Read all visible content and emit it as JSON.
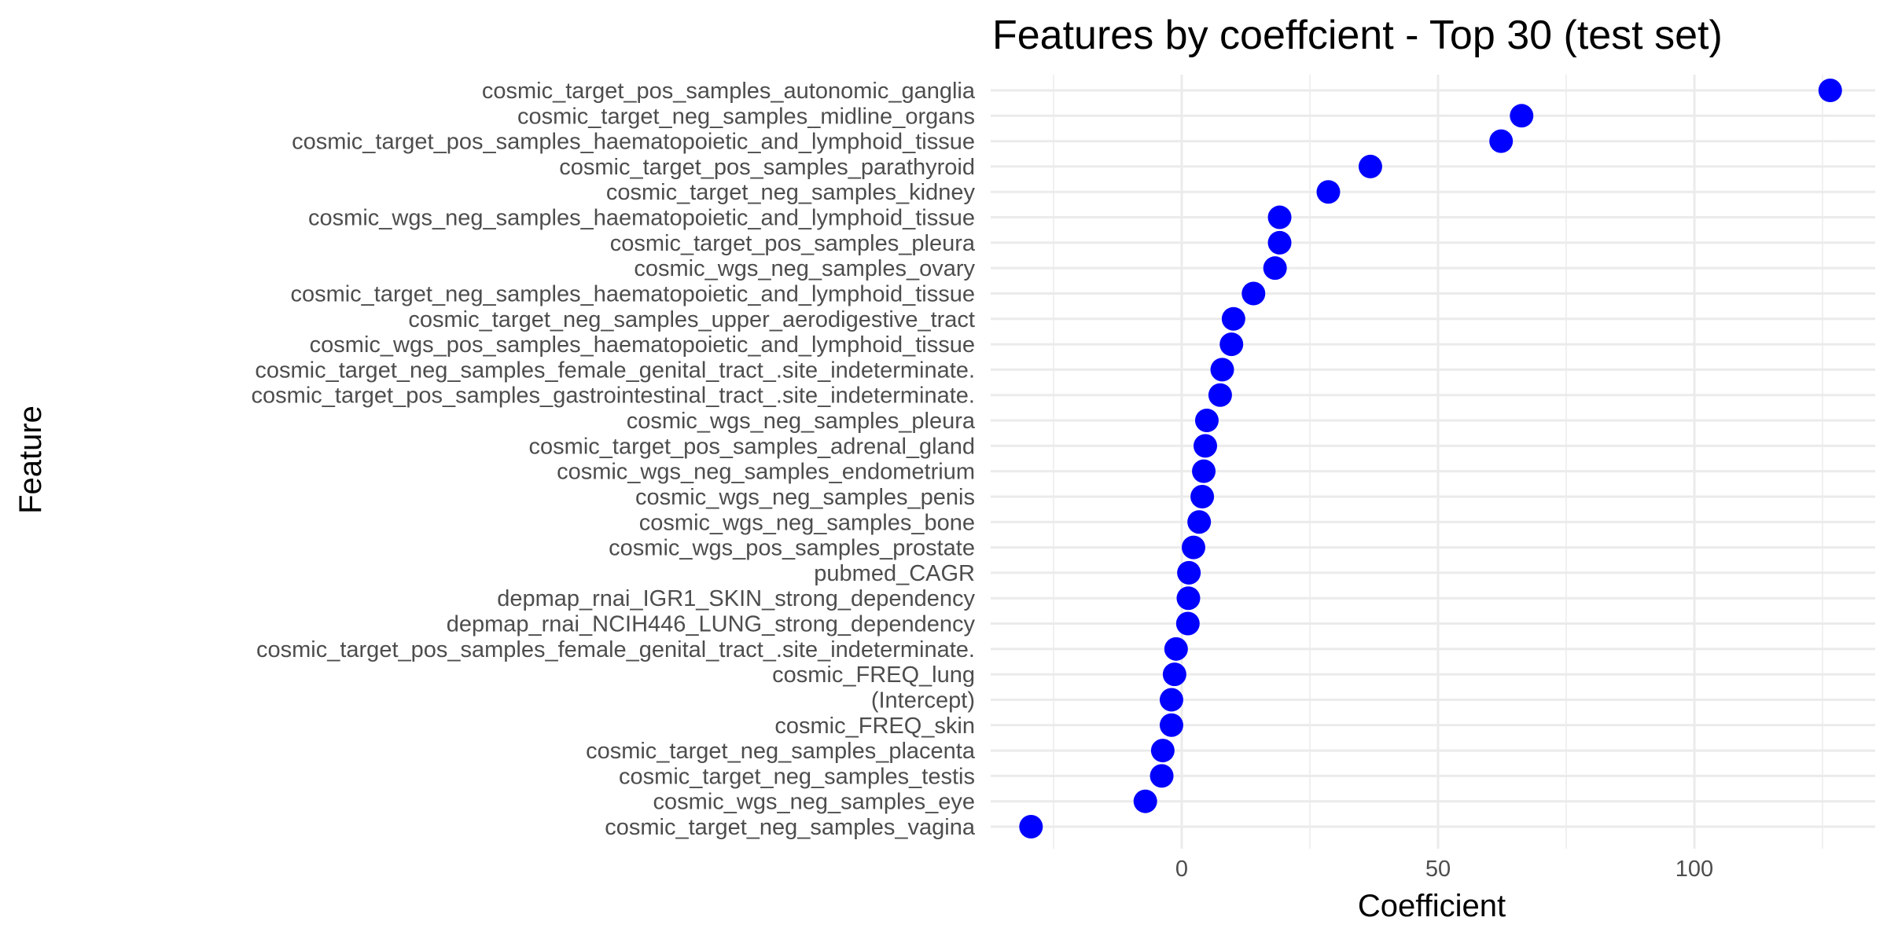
{
  "chart_data": {
    "type": "scatter",
    "title": "Features by coeffcient - Top 30 (test set)",
    "xlabel": "Coefficient",
    "ylabel": "Feature",
    "xlim": [
      -35,
      135
    ],
    "x_ticks": [
      0,
      50,
      100
    ],
    "x_minor_ticks": [
      -25,
      25,
      75,
      125
    ],
    "grid": true,
    "point_color": "#0000ff",
    "categories": [
      "cosmic_target_pos_samples_autonomic_ganglia",
      "cosmic_target_neg_samples_midline_organs",
      "cosmic_target_pos_samples_haematopoietic_and_lymphoid_tissue",
      "cosmic_target_pos_samples_parathyroid",
      "cosmic_target_neg_samples_kidney",
      "cosmic_wgs_neg_samples_haematopoietic_and_lymphoid_tissue",
      "cosmic_target_pos_samples_pleura",
      "cosmic_wgs_neg_samples_ovary",
      "cosmic_target_neg_samples_haematopoietic_and_lymphoid_tissue",
      "cosmic_target_neg_samples_upper_aerodigestive_tract",
      "cosmic_wgs_pos_samples_haematopoietic_and_lymphoid_tissue",
      "cosmic_target_neg_samples_female_genital_tract_.site_indeterminate.",
      "cosmic_target_pos_samples_gastrointestinal_tract_.site_indeterminate.",
      "cosmic_wgs_neg_samples_pleura",
      "cosmic_target_pos_samples_adrenal_gland",
      "cosmic_wgs_neg_samples_endometrium",
      "cosmic_wgs_neg_samples_penis",
      "cosmic_wgs_neg_samples_bone",
      "cosmic_wgs_pos_samples_prostate",
      "pubmed_CAGR",
      "depmap_rnai_IGR1_SKIN_strong_dependency",
      "depmap_rnai_NCIH446_LUNG_strong_dependency",
      "cosmic_target_pos_samples_female_genital_tract_.site_indeterminate.",
      "cosmic_FREQ_lung",
      "(Intercept)",
      "cosmic_FREQ_skin",
      "cosmic_target_neg_samples_placenta",
      "cosmic_target_neg_samples_testis",
      "cosmic_wgs_neg_samples_eye",
      "cosmic_target_neg_samples_vagina"
    ],
    "values": [
      126.5,
      66.3,
      62.3,
      36.8,
      28.6,
      19.1,
      19.1,
      18.2,
      14.0,
      10.1,
      9.7,
      7.9,
      7.5,
      4.9,
      4.6,
      4.3,
      4.0,
      3.4,
      2.3,
      1.4,
      1.3,
      1.2,
      -1.1,
      -1.4,
      -2.0,
      -2.0,
      -3.7,
      -3.9,
      -7.1,
      -29.4
    ]
  }
}
